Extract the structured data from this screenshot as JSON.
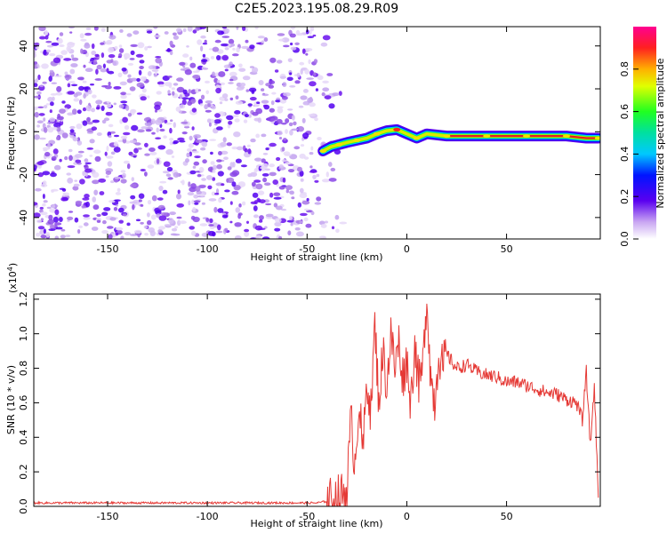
{
  "title": "C2E5.2023.195.08.29.R09",
  "chart_data": [
    {
      "type": "heatmap",
      "xlabel": "Height of straight line (km)",
      "ylabel": "Frequency (Hz)",
      "xlim": [
        -187,
        97
      ],
      "ylim": [
        -50,
        49
      ],
      "x_ticks": [
        -150,
        -100,
        -50,
        0,
        50
      ],
      "y_ticks": [
        -40,
        -20,
        0,
        20,
        40
      ],
      "colorbar": {
        "label": "Normalized spectral amplitude",
        "range": [
          0,
          1
        ],
        "ticks": [
          0.0,
          0.2,
          0.4,
          0.6,
          0.8
        ]
      },
      "noise_region": {
        "x_range": [
          -187,
          -40
        ],
        "y_range": [
          -50,
          49
        ]
      },
      "ridge": {
        "x": [
          -42,
          -38,
          -34,
          -30,
          -25,
          -20,
          -15,
          -10,
          -5,
          0,
          5,
          10,
          20,
          30,
          40,
          50,
          60,
          70,
          80,
          90,
          96
        ],
        "frequency": [
          -9,
          -7,
          -6,
          -5,
          -4,
          -3,
          -1,
          0.5,
          1,
          -1,
          -3,
          -1,
          -2,
          -2,
          -2,
          -2,
          -2,
          -2,
          -2,
          -3,
          -3
        ]
      }
    },
    {
      "type": "line",
      "xlabel": "Height of straight line (km)",
      "ylabel": "SNR (10 * v/v)",
      "y_scale_label": "(x10",
      "y_scale_exp": "4",
      "y_scale_close": ")",
      "xlim": [
        -187,
        97
      ],
      "ylim": [
        0,
        1.23
      ],
      "x_ticks": [
        -150,
        -100,
        -50,
        0,
        50
      ],
      "y_ticks": [
        0.0,
        0.2,
        0.4,
        0.6,
        0.8,
        1.0,
        1.2
      ],
      "series": [
        {
          "color": "#e53935",
          "x": [
            -187,
            -150,
            -100,
            -60,
            -45,
            -40,
            -36,
            -33,
            -30,
            -28,
            -26,
            -24,
            -22,
            -20,
            -18,
            -16,
            -14,
            -12,
            -10,
            -8,
            -6,
            -4,
            -2,
            0,
            2,
            4,
            6,
            8,
            10,
            12,
            14,
            16,
            18,
            20,
            25,
            30,
            35,
            40,
            45,
            50,
            55,
            60,
            65,
            70,
            75,
            80,
            85,
            88,
            90,
            92,
            94,
            96
          ],
          "y": [
            0.02,
            0.02,
            0.02,
            0.02,
            0.02,
            0.03,
            0.04,
            0.06,
            0.1,
            0.5,
            0.25,
            0.62,
            0.3,
            0.75,
            0.55,
            1.05,
            0.6,
            0.9,
            0.7,
            1.0,
            0.8,
            0.95,
            0.75,
            0.85,
            0.6,
            0.95,
            0.7,
            0.8,
            1.23,
            0.75,
            0.6,
            0.9,
            0.8,
            0.88,
            0.8,
            0.82,
            0.78,
            0.76,
            0.75,
            0.72,
            0.72,
            0.7,
            0.68,
            0.66,
            0.65,
            0.62,
            0.6,
            0.5,
            0.78,
            0.35,
            0.7,
            0.05
          ]
        }
      ]
    }
  ]
}
